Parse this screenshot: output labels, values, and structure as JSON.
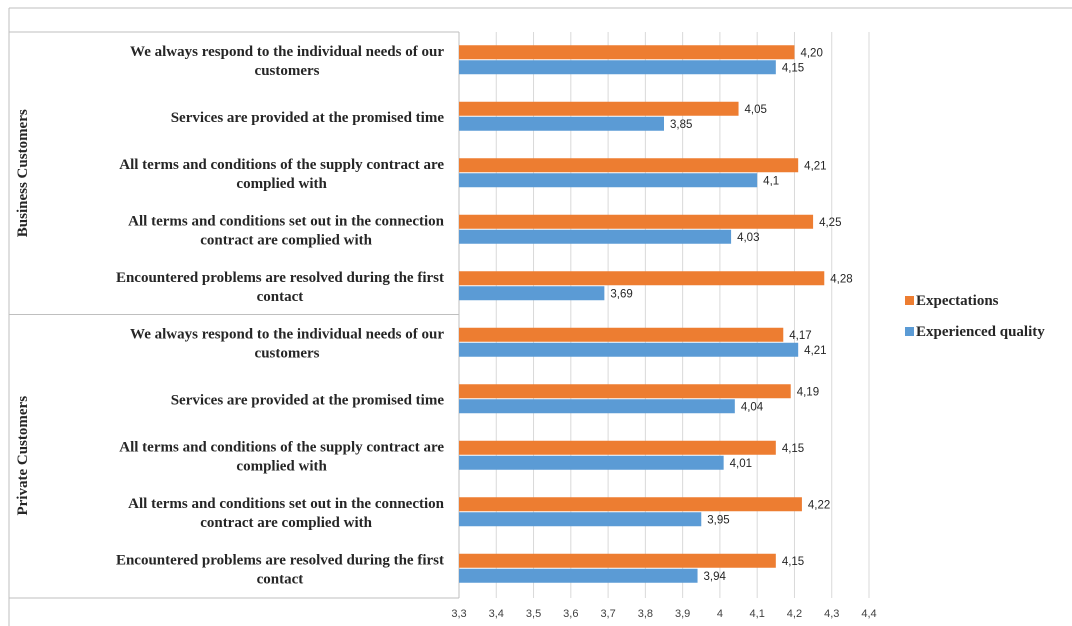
{
  "chart_data": {
    "type": "bar",
    "orientation": "horizontal",
    "groups": [
      {
        "name": "Business Customers",
        "categories": [
          "We always respond to the individual needs of our customers",
          "Services are provided at the promised time",
          "All terms and conditions of the supply contract are complied with",
          "All terms and conditions set out in the connection contract are complied with",
          "Encountered  problems are resolved during the first contact"
        ],
        "label_lines": [
          [
            "We always respond to the individual needs of our",
            "customers"
          ],
          [
            "Services are provided at the promised time"
          ],
          [
            "All terms and conditions of the supply contract are",
            "complied with"
          ],
          [
            "All terms and conditions set out in the connection",
            "contract are complied with"
          ],
          [
            "Encountered  problems are resolved during the first",
            "contact"
          ]
        ],
        "series": [
          {
            "name": "Expectations",
            "values": [
              4.2,
              4.05,
              4.21,
              4.25,
              4.28
            ],
            "labels": [
              "4,20",
              "4,05",
              "4,21",
              "4,25",
              "4,28"
            ]
          },
          {
            "name": "Experienced quality",
            "values": [
              4.15,
              3.85,
              4.1,
              4.03,
              3.69
            ],
            "labels": [
              "4,15",
              "3,85",
              "4,1",
              "4,03",
              "3,69"
            ]
          }
        ]
      },
      {
        "name": "Private Customers",
        "categories": [
          "We always respond to the individual needs of our customers",
          "Services are provided at the promised time",
          "All terms and conditions of the supply contract are complied with",
          "All terms and conditions set out in the connection contract are complied with",
          "Encountered  problems are resolved during the first contact"
        ],
        "label_lines": [
          [
            "We always respond to the individual needs of our",
            "customers"
          ],
          [
            "Services are provided at the promised time"
          ],
          [
            "All terms and conditions of the supply contract are",
            "complied with"
          ],
          [
            "All terms and conditions set out in the connection",
            "contract are complied with"
          ],
          [
            "Encountered  problems are resolved during the first",
            "contact"
          ]
        ],
        "series": [
          {
            "name": "Expectations",
            "values": [
              4.17,
              4.19,
              4.15,
              4.22,
              4.15
            ],
            "labels": [
              "4,17",
              "4,19",
              "4,15",
              "4,22",
              "4,15"
            ]
          },
          {
            "name": "Experienced quality",
            "values": [
              4.21,
              4.04,
              4.01,
              3.95,
              3.94
            ],
            "labels": [
              "4,21",
              "4,04",
              "4,01",
              "3,95",
              "3,94"
            ]
          }
        ]
      }
    ],
    "xlim": [
      3.3,
      4.4
    ],
    "xticks": [
      3.3,
      3.4,
      3.5,
      3.6,
      3.7,
      3.8,
      3.9,
      4.0,
      4.1,
      4.2,
      4.3,
      4.4
    ],
    "xtick_labels": [
      "3,3",
      "3,4",
      "3,5",
      "3,6",
      "3,7",
      "3,8",
      "3,9",
      "4",
      "4,1",
      "4,2",
      "4,3",
      "4,4"
    ],
    "grid": true,
    "legend_position": "right",
    "legend": [
      {
        "name": "Expectations",
        "color": "#ED7D31"
      },
      {
        "name": "Experienced quality",
        "color": "#5B9BD5"
      }
    ],
    "colors": {
      "Expectations": "#ED7D31",
      "Experienced quality": "#5B9BD5"
    }
  }
}
